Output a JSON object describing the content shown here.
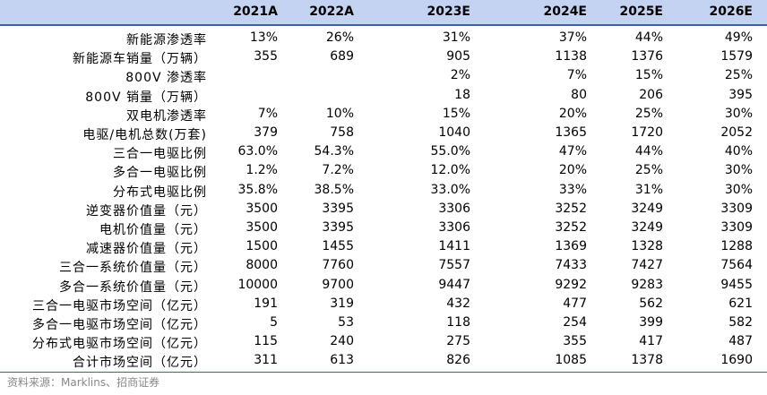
{
  "table": {
    "headers": [
      "2021A",
      "2022A",
      "2023E",
      "2024E",
      "2025E",
      "2026E"
    ],
    "rows": [
      {
        "label": "新能源渗透率",
        "values": [
          "13%",
          "26%",
          "31%",
          "37%",
          "44%",
          "49%"
        ]
      },
      {
        "label": "新能源车销量（万辆）",
        "values": [
          "355",
          "689",
          "905",
          "1138",
          "1376",
          "1579"
        ]
      },
      {
        "label": "800V 渗透率",
        "values": [
          "",
          "",
          "2%",
          "7%",
          "15%",
          "25%"
        ]
      },
      {
        "label": "800V 销量（万辆）",
        "values": [
          "",
          "",
          "18",
          "80",
          "206",
          "395"
        ]
      },
      {
        "label": "双电机渗透率",
        "values": [
          "7%",
          "10%",
          "15%",
          "20%",
          "25%",
          "30%"
        ]
      },
      {
        "label": "电驱/电机总数(万套)",
        "values": [
          "379",
          "758",
          "1040",
          "1365",
          "1720",
          "2052"
        ]
      },
      {
        "label": "三合一电驱比例",
        "values": [
          "63.0%",
          "54.3%",
          "55.0%",
          "47%",
          "44%",
          "40%"
        ]
      },
      {
        "label": "多合一电驱比例",
        "values": [
          "1.2%",
          "7.2%",
          "12.0%",
          "20%",
          "25%",
          "30%"
        ]
      },
      {
        "label": "分布式电驱比例",
        "values": [
          "35.8%",
          "38.5%",
          "33.0%",
          "33%",
          "31%",
          "30%"
        ]
      },
      {
        "label": "逆变器价值量（元）",
        "values": [
          "3500",
          "3395",
          "3306",
          "3252",
          "3249",
          "3309"
        ]
      },
      {
        "label": "电机价值量（元）",
        "values": [
          "3500",
          "3395",
          "3306",
          "3252",
          "3249",
          "3309"
        ]
      },
      {
        "label": "减速器价值量（元）",
        "values": [
          "1500",
          "1455",
          "1411",
          "1369",
          "1328",
          "1288"
        ]
      },
      {
        "label": "三合一系统价值量（元）",
        "values": [
          "8000",
          "7760",
          "7557",
          "7433",
          "7427",
          "7564"
        ]
      },
      {
        "label": "多合一系统价值量（元）",
        "values": [
          "10000",
          "9700",
          "9447",
          "9292",
          "9283",
          "9455"
        ]
      },
      {
        "label": "三合一电驱市场空间（亿元）",
        "values": [
          "191",
          "319",
          "432",
          "477",
          "562",
          "621"
        ]
      },
      {
        "label": "多合一电驱市场空间（亿元）",
        "values": [
          "5",
          "53",
          "118",
          "254",
          "399",
          "582"
        ]
      },
      {
        "label": "分布式电驱市场空间（亿元）",
        "values": [
          "115",
          "240",
          "275",
          "355",
          "417",
          "487"
        ]
      },
      {
        "label": "合计市场空间（亿元）",
        "values": [
          "311",
          "613",
          "826",
          "1085",
          "1378",
          "1690"
        ]
      }
    ]
  },
  "source": "资料来源：Marklins、招商证券"
}
